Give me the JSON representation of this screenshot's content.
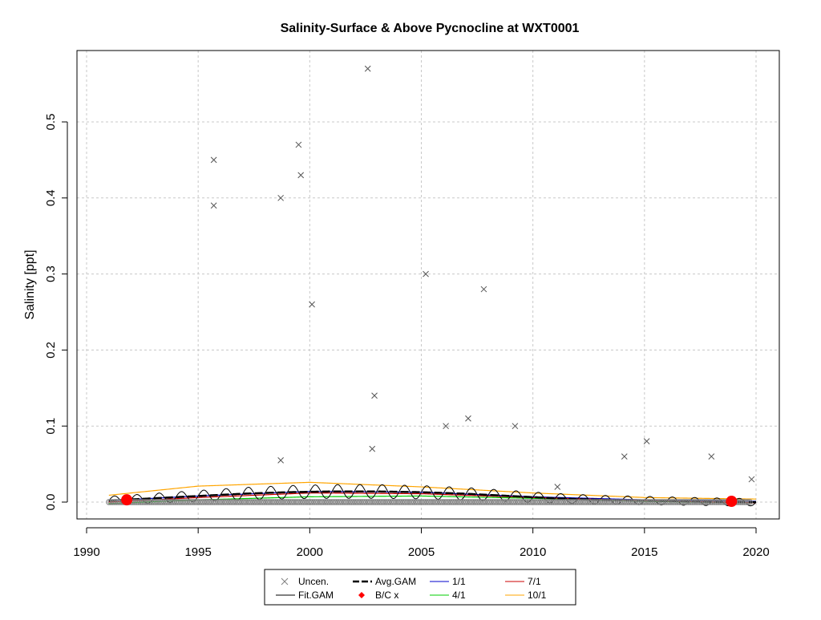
{
  "chart_data": {
    "type": "scatter",
    "title": "Salinity-Surface & Above Pycnocline at WXT0001",
    "xlabel": "",
    "ylabel": "Salinity [ppt]",
    "xlim": [
      1990,
      2020
    ],
    "ylim": [
      0,
      0.57
    ],
    "x_ticks": [
      1990,
      1995,
      2000,
      2005,
      2010,
      2015,
      2020
    ],
    "y_ticks": [
      0.0,
      0.1,
      0.2,
      0.3,
      0.4,
      0.5
    ],
    "grid": true,
    "legend_position": "bottom",
    "colors": {
      "uncen": "#808080",
      "fit_gam": "#000000",
      "avg_gam": "#000000",
      "bc_x": "#ff0000",
      "line_1_1": "#0000cc",
      "line_4_1": "#00cc00",
      "line_7_1": "#cc0000",
      "line_10_1": "#ffa500",
      "grid": "#c8c8c8"
    },
    "legend": {
      "items": [
        {
          "label": "Uncen.",
          "symbol": "x"
        },
        {
          "label": "Avg.GAM",
          "symbol": "dash"
        },
        {
          "label": "1/1",
          "symbol": "line"
        },
        {
          "label": "7/1",
          "symbol": "line"
        },
        {
          "label": "Fit.GAM",
          "symbol": "line"
        },
        {
          "label": "B/C x",
          "symbol": "diamond"
        },
        {
          "label": "4/1",
          "symbol": "line"
        },
        {
          "label": "10/1",
          "symbol": "line"
        }
      ]
    },
    "uncensored_points": [
      {
        "x": 1995.7,
        "y": 0.45
      },
      {
        "x": 1995.7,
        "y": 0.39
      },
      {
        "x": 1998.7,
        "y": 0.4
      },
      {
        "x": 1998.7,
        "y": 0.055
      },
      {
        "x": 1999.5,
        "y": 0.47
      },
      {
        "x": 1999.6,
        "y": 0.43
      },
      {
        "x": 2000.1,
        "y": 0.26
      },
      {
        "x": 2002.6,
        "y": 0.57
      },
      {
        "x": 2002.8,
        "y": 0.07
      },
      {
        "x": 2002.9,
        "y": 0.14
      },
      {
        "x": 2005.2,
        "y": 0.3
      },
      {
        "x": 2006.1,
        "y": 0.1
      },
      {
        "x": 2007.1,
        "y": 0.11
      },
      {
        "x": 2007.8,
        "y": 0.28
      },
      {
        "x": 2009.2,
        "y": 0.1
      },
      {
        "x": 2011.1,
        "y": 0.02
      },
      {
        "x": 2014.1,
        "y": 0.06
      },
      {
        "x": 2015.1,
        "y": 0.08
      },
      {
        "x": 2018.0,
        "y": 0.06
      },
      {
        "x": 2019.8,
        "y": 0.03
      }
    ],
    "bc_points": [
      {
        "x": 1991.8,
        "y": 0.003
      },
      {
        "x": 2018.9,
        "y": 0.001
      }
    ],
    "avg_gam": {
      "x": [
        1991,
        1993,
        1995,
        1997,
        1999,
        2001,
        2003,
        2005,
        2007,
        2009,
        2011,
        2013,
        2015,
        2017,
        2019,
        2020
      ],
      "y": [
        0.002,
        0.005,
        0.008,
        0.011,
        0.013,
        0.014,
        0.014,
        0.013,
        0.011,
        0.008,
        0.005,
        0.003,
        0.002,
        0.001,
        0.0,
        0.0
      ]
    },
    "fit_gam": {
      "amplitude": 0.009,
      "x": [
        1991,
        1993,
        1995,
        1997,
        1999,
        2001,
        2003,
        2005,
        2007,
        2009,
        2011,
        2013,
        2015,
        2017,
        2019,
        2020
      ],
      "y": [
        0.002,
        0.005,
        0.008,
        0.011,
        0.013,
        0.014,
        0.014,
        0.013,
        0.011,
        0.008,
        0.005,
        0.003,
        0.002,
        0.001,
        0.0,
        0.0
      ]
    },
    "series_lines": [
      {
        "name": "1/1",
        "x": [
          1991,
          1995,
          2000,
          2005,
          2010,
          2015,
          2020
        ],
        "y": [
          0.002,
          0.008,
          0.014,
          0.013,
          0.007,
          0.003,
          0.001
        ]
      },
      {
        "name": "4/1",
        "x": [
          1991,
          1995,
          2000,
          2005,
          2010,
          2015,
          2020
        ],
        "y": [
          -0.002,
          0.003,
          0.007,
          0.008,
          0.005,
          0.001,
          -0.001
        ]
      },
      {
        "name": "7/1",
        "x": [
          1991,
          1995,
          2000,
          2005,
          2010,
          2015,
          2020
        ],
        "y": [
          0.0,
          0.006,
          0.012,
          0.011,
          0.006,
          0.002,
          -0.001
        ]
      },
      {
        "name": "10/1",
        "x": [
          1991,
          1995,
          2000,
          2005,
          2010,
          2015,
          2020
        ],
        "y": [
          0.009,
          0.021,
          0.026,
          0.02,
          0.012,
          0.006,
          0.004
        ]
      }
    ],
    "censored_points": {
      "y": 0.0,
      "x_start": 1991.0,
      "x_end": 2019.8,
      "step": 0.083
    }
  }
}
